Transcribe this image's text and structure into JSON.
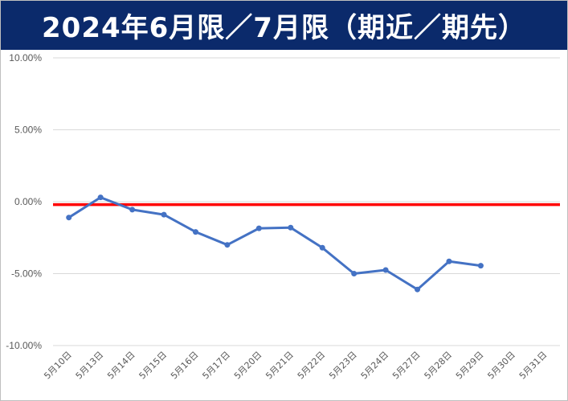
{
  "title": "2024年6月限／7月限（期近／期先）",
  "colors": {
    "title_background": "#0b2a6b",
    "title_text": "#ffffff",
    "series_line": "#4472c4",
    "zero_line": "#ff0000",
    "gridline": "#d9d9d9"
  },
  "chart_data": {
    "type": "line",
    "title": "2024年6月限／7月限（期近／期先）",
    "xlabel": "",
    "ylabel": "",
    "ylim": [
      -10,
      10
    ],
    "y_unit": "%",
    "y_tick_labels": [
      "10.00%",
      "5.00%",
      "0.00%",
      "-5.00%",
      "-10.00%"
    ],
    "y_tick_values": [
      10,
      5,
      0,
      -5,
      -10
    ],
    "grid": true,
    "legend": "none",
    "categories": [
      "5月10日",
      "5月13日",
      "5月14日",
      "5月15日",
      "5月16日",
      "5月17日",
      "5月20日",
      "5月21日",
      "5月22日",
      "5月23日",
      "5月24日",
      "5月27日",
      "5月28日",
      "5月29日",
      "5月30日",
      "5月31日"
    ],
    "series": [
      {
        "values": [
          -1.1,
          0.3,
          -0.55,
          -0.9,
          -2.1,
          -3.0,
          -1.85,
          -1.8,
          -3.2,
          -5.0,
          -4.75,
          -6.1,
          -4.15,
          -4.45,
          null,
          null
        ]
      }
    ],
    "reference_line": {
      "value": -0.2
    }
  }
}
